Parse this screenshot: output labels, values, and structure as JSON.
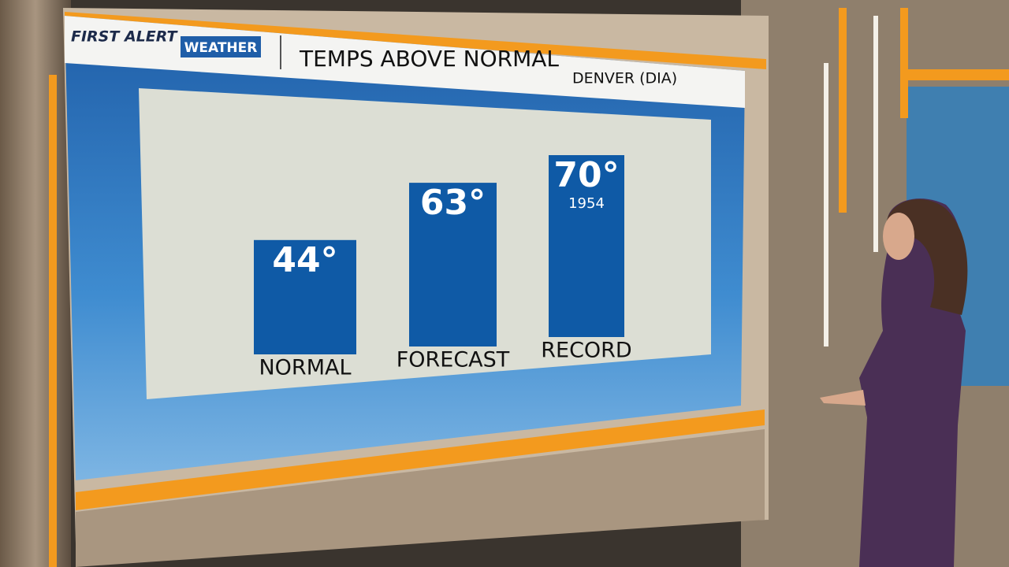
{
  "brand": {
    "first": "FIRST ALERT",
    "second": "WEATHER"
  },
  "chart_data": {
    "type": "bar",
    "title": "TEMPS ABOVE NORMAL",
    "subtitle": "DENVER (DIA)",
    "categories": [
      "NORMAL",
      "FORECAST",
      "RECORD"
    ],
    "values": [
      44,
      63,
      70
    ],
    "value_labels": [
      "44°",
      "63°",
      "70°"
    ],
    "value_notes": [
      null,
      null,
      "1954"
    ],
    "color": "#0f5aa6"
  }
}
